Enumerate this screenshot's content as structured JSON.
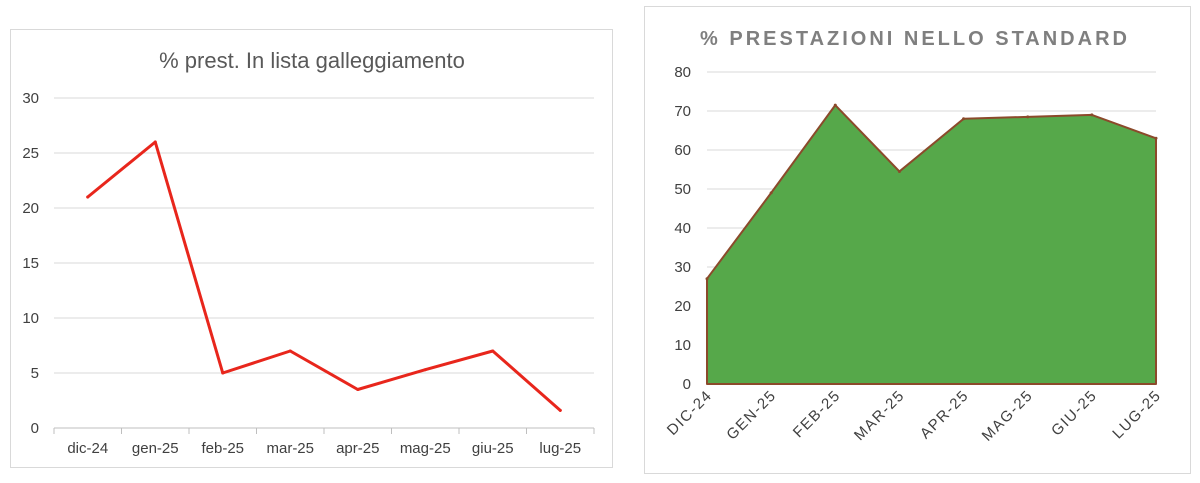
{
  "chart_data": [
    {
      "type": "line",
      "title": "% prest. In lista galleggiamento",
      "categories": [
        "dic-24",
        "gen-25",
        "feb-25",
        "mar-25",
        "apr-25",
        "mag-25",
        "giu-25",
        "lug-25"
      ],
      "series": [
        {
          "values": [
            21,
            26,
            5,
            7,
            3.5,
            5.3,
            7,
            1.6
          ]
        }
      ],
      "ylim": [
        0,
        30
      ],
      "yticks": [
        0,
        5,
        10,
        15,
        20,
        25,
        30
      ],
      "grid": true,
      "colors": {
        "line": "#e8261c",
        "grid": "#d9d9d9",
        "axis": "#bfbfbf"
      }
    },
    {
      "type": "area",
      "title": "% PRESTAZIONI NELLO STANDARD",
      "categories": [
        "DIC-24",
        "GEN-25",
        "FEB-25",
        "MAR-25",
        "APR-25",
        "MAG-25",
        "GIU-25",
        "LUG-25"
      ],
      "series": [
        {
          "values": [
            27,
            49,
            71.5,
            54.5,
            68,
            68.5,
            69,
            63
          ]
        }
      ],
      "ylim": [
        0,
        80
      ],
      "yticks": [
        0,
        10,
        20,
        30,
        40,
        50,
        60,
        70,
        80
      ],
      "grid": true,
      "colors": {
        "fill": "#56a84a",
        "stroke": "#8b4a2b",
        "grid": "#d9d9d9"
      }
    }
  ]
}
